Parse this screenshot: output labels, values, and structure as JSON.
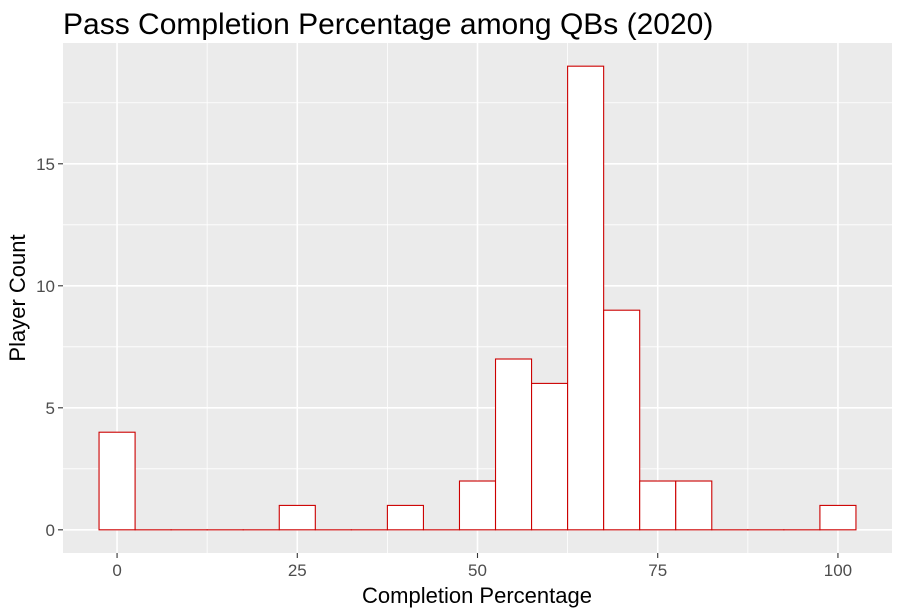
{
  "chart_data": {
    "type": "bar",
    "title": "Pass Completion Percentage among QBs (2020)",
    "xlabel": "Completion Percentage",
    "ylabel": "Player Count",
    "bin_width": 5,
    "bins": [
      {
        "center": 0,
        "count": 4
      },
      {
        "center": 5,
        "count": 0
      },
      {
        "center": 10,
        "count": 0
      },
      {
        "center": 15,
        "count": 0
      },
      {
        "center": 20,
        "count": 0
      },
      {
        "center": 25,
        "count": 1
      },
      {
        "center": 30,
        "count": 0
      },
      {
        "center": 35,
        "count": 0
      },
      {
        "center": 40,
        "count": 1
      },
      {
        "center": 45,
        "count": 0
      },
      {
        "center": 50,
        "count": 2
      },
      {
        "center": 55,
        "count": 7
      },
      {
        "center": 60,
        "count": 6
      },
      {
        "center": 65,
        "count": 19
      },
      {
        "center": 70,
        "count": 9
      },
      {
        "center": 75,
        "count": 2
      },
      {
        "center": 80,
        "count": 2
      },
      {
        "center": 85,
        "count": 0
      },
      {
        "center": 90,
        "count": 0
      },
      {
        "center": 95,
        "count": 0
      },
      {
        "center": 100,
        "count": 1
      }
    ],
    "xlim": [
      -7.5,
      107.5
    ],
    "ylim": [
      -0.95,
      19.95
    ],
    "x_ticks": [
      0,
      25,
      50,
      75,
      100
    ],
    "x_minor": [
      12.5,
      37.5,
      62.5,
      87.5
    ],
    "y_ticks": [
      0,
      5,
      10,
      15
    ],
    "y_minor": [
      2.5,
      7.5,
      12.5,
      17.5
    ],
    "grid": true,
    "colors": {
      "panel": "#ebebeb",
      "grid": "#ffffff",
      "bar_fill": "#ffffff",
      "bar_outline": "#cc0000"
    }
  }
}
